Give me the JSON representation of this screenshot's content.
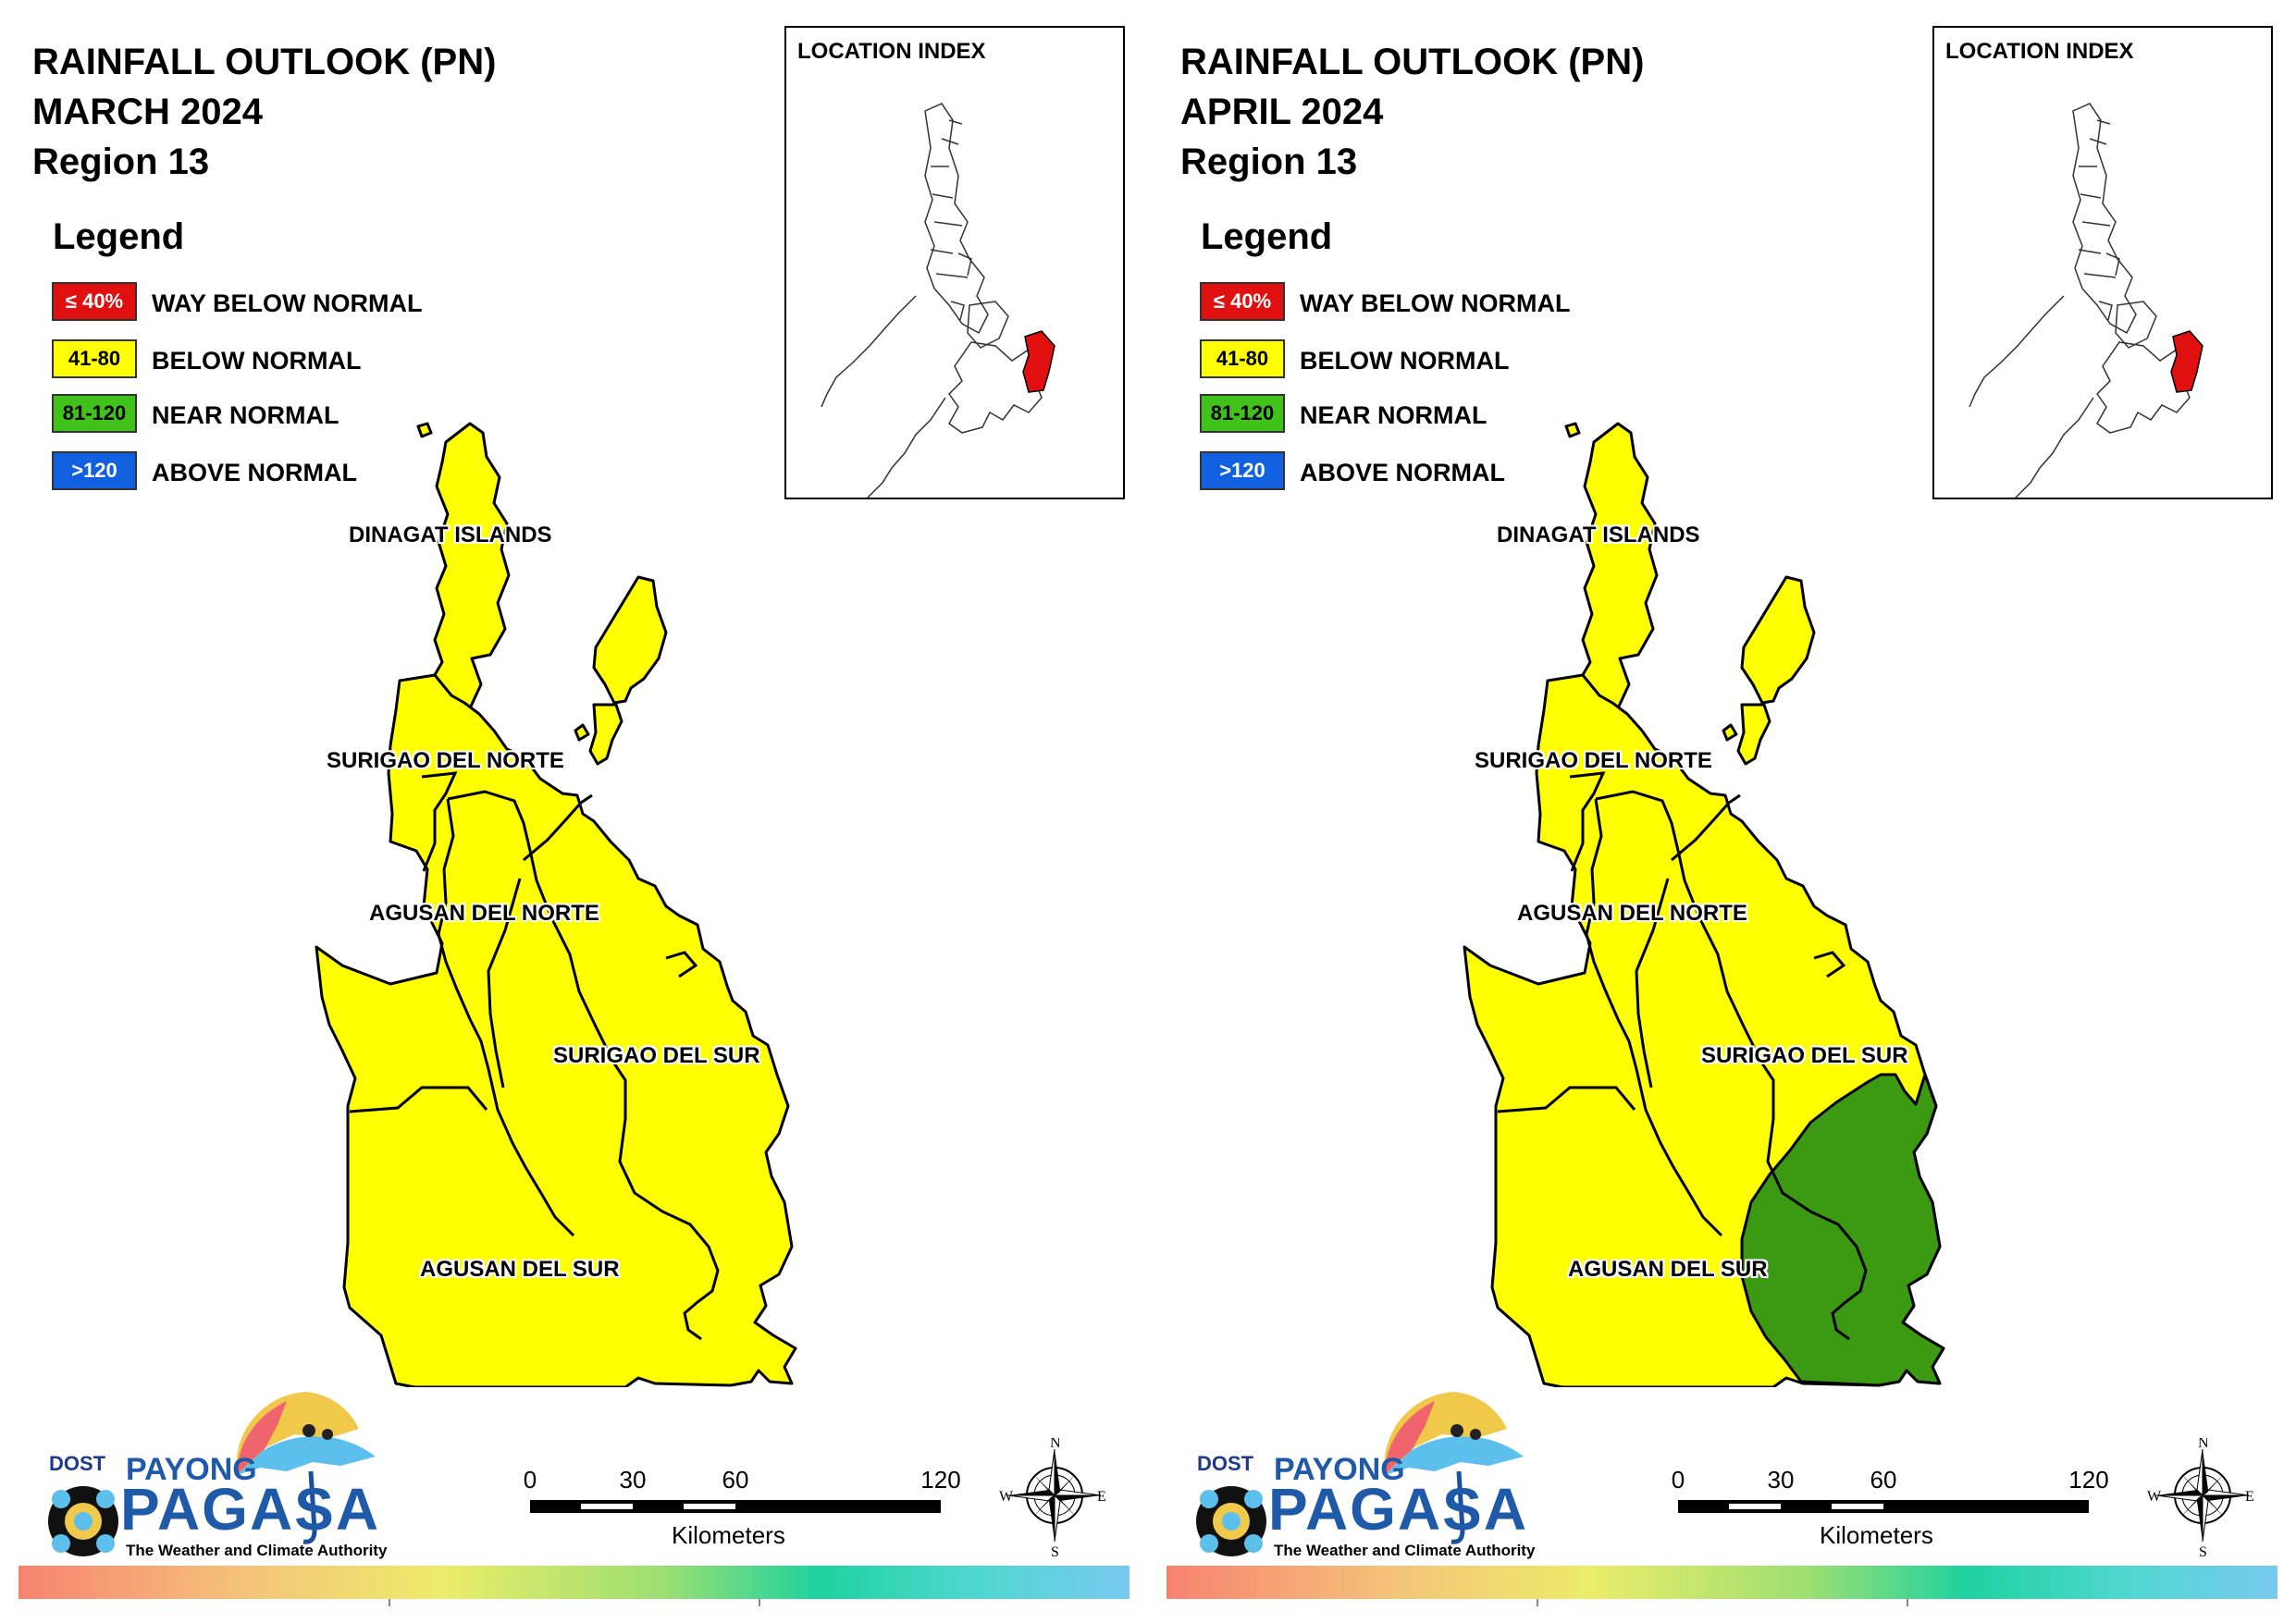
{
  "panels": [
    {
      "id": "march",
      "title_lines": [
        "RAINFALL OUTLOOK (PN)",
        "MARCH 2024",
        "Region 13"
      ],
      "has_near_normal_zone": false
    },
    {
      "id": "april",
      "title_lines": [
        "RAINFALL OUTLOOK (PN)",
        "APRIL 2024",
        "Region 13"
      ],
      "has_near_normal_zone": true
    }
  ],
  "legend": {
    "title": "Legend",
    "items": [
      {
        "range": "≤ 40%",
        "label": "WAY BELOW NORMAL",
        "color": "#e01010",
        "text_color": "#ffffff"
      },
      {
        "range": "41-80",
        "label": "BELOW NORMAL",
        "color": "#ffff00",
        "text_color": "#000000"
      },
      {
        "range": "81-120",
        "label": "NEAR NORMAL",
        "color": "#41c21b",
        "text_color": "#000000"
      },
      {
        "range": ">120",
        "label": "ABOVE NORMAL",
        "color": "#1060e0",
        "text_color": "#ffffff"
      }
    ]
  },
  "location_index": {
    "title": "LOCATION INDEX",
    "highlight_color": "#e01010"
  },
  "provinces": [
    {
      "name": "DINAGAT ISLANDS"
    },
    {
      "name": "SURIGAO DEL NORTE"
    },
    {
      "name": "AGUSAN DEL NORTE"
    },
    {
      "name": "SURIGAO DEL SUR"
    },
    {
      "name": "AGUSAN DEL SUR"
    }
  ],
  "map_colors": {
    "below_normal": "#ffff00",
    "near_normal": "#3c9a12",
    "border": "#000000"
  },
  "logo": {
    "dost": "DOST",
    "payong": "PAYONG",
    "pagasa": "PAGASA",
    "tagline": "The Weather and Climate Authority"
  },
  "scale": {
    "ticks": [
      "0",
      "30",
      "60",
      "120"
    ],
    "unit": "Kilometers"
  },
  "compass": {
    "n": "N",
    "s": "S",
    "e": "E",
    "w": "W"
  }
}
